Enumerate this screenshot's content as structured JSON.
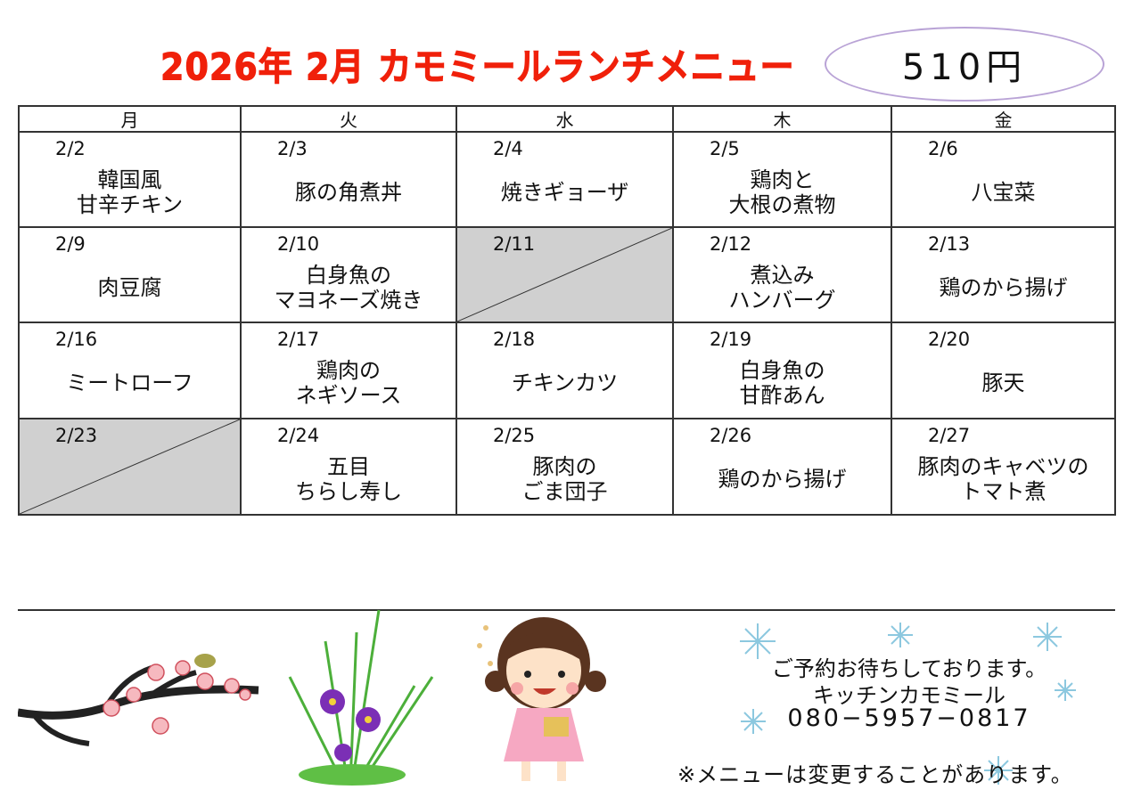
{
  "header": {
    "title": "2026年 2月 カモミールランチメニュー",
    "price": "510円",
    "title_color": "#f0200a"
  },
  "weekdays": [
    "月",
    "火",
    "水",
    "木",
    "金"
  ],
  "weeks": [
    [
      {
        "date": "2/2",
        "menu": "韓国風\n甘辛チキン"
      },
      {
        "date": "2/3",
        "menu": "豚の角煮丼"
      },
      {
        "date": "2/4",
        "menu": "焼きギョーザ"
      },
      {
        "date": "2/5",
        "menu": "鶏肉と\n大根の煮物"
      },
      {
        "date": "2/6",
        "menu": "八宝菜"
      }
    ],
    [
      {
        "date": "2/9",
        "menu": "肉豆腐"
      },
      {
        "date": "2/10",
        "menu": "白身魚の\nマヨネーズ焼き"
      },
      {
        "date": "2/11",
        "menu": "",
        "closed": true
      },
      {
        "date": "2/12",
        "menu": "煮込み\nハンバーグ"
      },
      {
        "date": "2/13",
        "menu": "鶏のから揚げ"
      }
    ],
    [
      {
        "date": "2/16",
        "menu": "ミートローフ"
      },
      {
        "date": "2/17",
        "menu": "鶏肉の\nネギソース"
      },
      {
        "date": "2/18",
        "menu": "チキンカツ"
      },
      {
        "date": "2/19",
        "menu": "白身魚の\n甘酢あん"
      },
      {
        "date": "2/20",
        "menu": "豚天"
      }
    ],
    [
      {
        "date": "2/23",
        "menu": "",
        "closed": true
      },
      {
        "date": "2/24",
        "menu": "五目\nちらし寿し"
      },
      {
        "date": "2/25",
        "menu": "豚肉の\nごま団子"
      },
      {
        "date": "2/26",
        "menu": "鶏のから揚げ"
      },
      {
        "date": "2/27",
        "menu": "豚肉のキャベツの\nトマト煮"
      }
    ]
  ],
  "footer": {
    "reservation": "ご予約お待ちしております。",
    "shop": "キッチンカモミール",
    "phone": "080−5957−0817",
    "note": "※メニューは変更することがあります。"
  }
}
